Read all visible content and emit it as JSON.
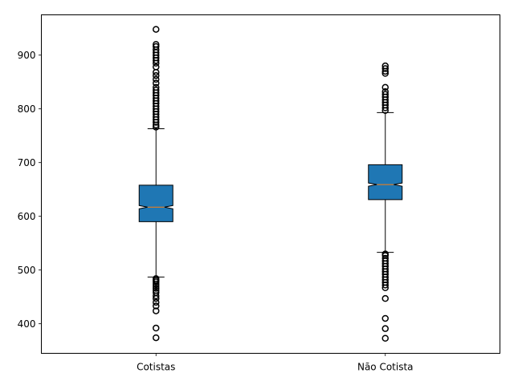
{
  "chart_data": {
    "type": "boxplot",
    "notched": true,
    "patch_artist": true,
    "title": "",
    "xlabel": "",
    "ylabel": "",
    "ylim": [
      345,
      975
    ],
    "yticks": [
      400,
      500,
      600,
      700,
      800,
      900
    ],
    "grid": false,
    "legend": "none",
    "box_color": "#1f77b4",
    "median_color": "#ff7f0e",
    "categories": [
      "Cotistas",
      "Não Cotista"
    ],
    "boxes": [
      {
        "label": "Cotistas",
        "whisker_low": 487,
        "q1": 590,
        "median": 617,
        "q3": 658,
        "whisker_high": 763,
        "notch_low": 614,
        "notch_high": 620,
        "outliers_low": [
          374,
          392,
          424,
          433,
          440,
          447,
          452,
          458,
          462,
          466,
          470,
          474,
          478,
          481,
          484
        ],
        "outliers_high": [
          766,
          770,
          775,
          780,
          785,
          790,
          795,
          800,
          805,
          810,
          815,
          820,
          825,
          830,
          835,
          840,
          848,
          855,
          862,
          868,
          878,
          885,
          890,
          895,
          900,
          905,
          910,
          916,
          920,
          948
        ]
      },
      {
        "label": "Não Cotista",
        "whisker_low": 533,
        "q1": 631,
        "median": 659,
        "q3": 696,
        "whisker_high": 793,
        "notch_low": 656,
        "notch_high": 662,
        "outliers_low": [
          373,
          391,
          410,
          447,
          467,
          472,
          477,
          482,
          487,
          492,
          497,
          502,
          507,
          512,
          517,
          522,
          527,
          530
        ],
        "outliers_high": [
          797,
          802,
          807,
          812,
          817,
          822,
          827,
          832,
          840,
          866,
          870,
          875,
          880
        ]
      }
    ]
  }
}
